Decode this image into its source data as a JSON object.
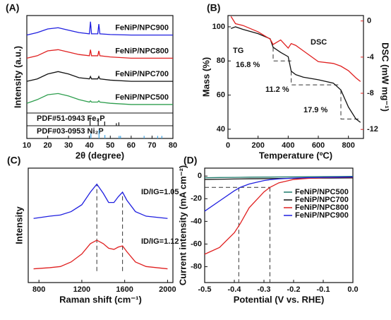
{
  "chart_data": [
    {
      "type": "line",
      "panel_label": "(A)",
      "x_label": "2θ (degree)",
      "y_label": "Intensity (a.u.)",
      "xlim": [
        10,
        80
      ],
      "xticks": [
        10,
        20,
        30,
        40,
        50,
        60,
        70,
        80
      ],
      "ylim": [
        0.6,
        4.6
      ],
      "x": [
        10,
        15,
        20,
        25,
        30,
        35,
        40,
        40.5,
        41,
        44,
        44.5,
        45,
        50,
        60,
        70,
        80
      ],
      "series": [
        {
          "name": "FeNiP/NPC900",
          "color": "#1f1fe0",
          "values": [
            3.8,
            3.9,
            4.05,
            4.1,
            4.0,
            3.9,
            3.85,
            4.35,
            3.85,
            3.85,
            4.25,
            3.85,
            3.82,
            3.8,
            3.8,
            3.8
          ]
        },
        {
          "name": "FeNiP/NPC800",
          "color": "#e02020",
          "values": [
            2.85,
            2.95,
            3.15,
            3.2,
            3.1,
            3.0,
            2.95,
            3.2,
            2.95,
            2.95,
            3.15,
            2.95,
            2.9,
            2.85,
            2.85,
            2.85
          ]
        },
        {
          "name": "FeNiP/NPC700",
          "color": "#111111",
          "values": [
            1.9,
            2.0,
            2.2,
            2.3,
            2.2,
            2.05,
            2.0,
            2.1,
            2.0,
            2.0,
            2.1,
            2.0,
            1.95,
            1.9,
            1.9,
            1.9
          ]
        },
        {
          "name": "FeNiP/NPC500",
          "color": "#2e9e4e",
          "values": [
            1.0,
            1.15,
            1.35,
            1.4,
            1.3,
            1.15,
            1.05,
            1.1,
            1.05,
            1.05,
            1.1,
            1.05,
            1.0,
            0.95,
            0.95,
            0.95
          ]
        }
      ],
      "references": [
        {
          "name": "PDF#51-0943  Fe₂P",
          "color": "#111111",
          "positions": [
            40.3,
            44.2,
            47.3,
            52.9,
            54.1
          ],
          "heights": [
            1,
            0.8,
            0.5,
            0.3,
            0.4
          ]
        },
        {
          "name": "PDF#03-0953  Ni₂P",
          "color": "#3aa0e0",
          "positions": [
            40.7,
            44.6,
            47.4,
            54.2,
            54.9,
            66.2,
            72.7,
            74.7
          ],
          "heights": [
            0.6,
            1,
            0.4,
            0.3,
            0.3,
            0.3,
            0.3,
            0.3
          ]
        }
      ]
    },
    {
      "type": "line",
      "panel_label": "(B)",
      "x_label": "Temperature (ºC)",
      "y_label": "Mass (%)",
      "y2_label": "DSC (mW mg⁻¹)",
      "y2_color": "#e02020",
      "xlim": [
        0,
        900
      ],
      "xticks": [
        0,
        200,
        400,
        600,
        800
      ],
      "ylim": [
        34.6,
        106.6
      ],
      "yticks": [
        40,
        60,
        80,
        100
      ],
      "y2lim": [
        -13,
        0.6
      ],
      "y2ticks": [
        0,
        -4,
        -8,
        -12
      ],
      "x": [
        20,
        50,
        100,
        200,
        280,
        300,
        350,
        400,
        420,
        450,
        500,
        600,
        700,
        750,
        800,
        850,
        880
      ],
      "series": [
        {
          "name": "TG",
          "color": "#111111",
          "values": [
            99,
            100,
            98.5,
            96,
            93,
            88,
            85,
            82.5,
            74,
            72,
            70.5,
            69,
            67,
            63,
            53,
            46,
            44
          ]
        },
        {
          "name": "DSC",
          "color": "#e02020",
          "axis": "y2",
          "values": [
            0.5,
            -0.3,
            -0.5,
            -1.2,
            -2.0,
            -2.6,
            -2.1,
            -3.0,
            -2.5,
            -2.7,
            -3.3,
            -4.5,
            -4.7,
            -5.0,
            -5.5,
            -6.3,
            -6.7
          ]
        }
      ],
      "guides": [
        {
          "x": [
            300,
            300,
            420
          ],
          "y": [
            88,
            80,
            80
          ]
        },
        {
          "x": [
            420,
            420,
            750
          ],
          "y": [
            74,
            66,
            66
          ]
        },
        {
          "x": [
            750,
            750,
            880
          ],
          "y": [
            63,
            46,
            46
          ]
        }
      ],
      "annotations": [
        "16.8 %",
        "11.2 %",
        "17.9 %"
      ]
    },
    {
      "type": "line",
      "panel_label": "(C)",
      "x_label": "Raman shift (cm⁻¹)",
      "y_label": "Intensity",
      "xlim": [
        700,
        2050
      ],
      "xticks": [
        800,
        1200,
        1600,
        2000
      ],
      "ylim": [
        0,
        10
      ],
      "x": [
        750,
        900,
        1000,
        1100,
        1200,
        1280,
        1340,
        1400,
        1450,
        1500,
        1540,
        1580,
        1620,
        1700,
        1800,
        1900,
        2000
      ],
      "series": [
        {
          "color": "#1f1fe0",
          "values": [
            5.6,
            5.8,
            5.9,
            6.2,
            6.8,
            7.9,
            8.6,
            7.8,
            7.0,
            7.0,
            7.5,
            7.9,
            7.2,
            6.2,
            5.8,
            5.7,
            5.6
          ]
        },
        {
          "color": "#e02020",
          "values": [
            1.2,
            1.3,
            1.4,
            1.8,
            2.5,
            3.4,
            3.7,
            3.4,
            3.0,
            2.9,
            3.1,
            3.2,
            2.7,
            1.8,
            1.4,
            1.3,
            1.2
          ]
        }
      ],
      "guides": [
        {
          "x": [
            1340,
            1340
          ],
          "y": [
            1,
            8.6
          ]
        },
        {
          "x": [
            1580,
            1580
          ],
          "y": [
            1,
            7.9
          ]
        }
      ],
      "annotations": [
        "ID/IG=1.05",
        "ID/IG=1.12"
      ]
    },
    {
      "type": "line",
      "panel_label": "(D)",
      "x_label": "Potential (V vs. RHE)",
      "y_label": "Current intensity (mA cm⁻²)",
      "xlim": [
        -0.5,
        0
      ],
      "xticks": [
        -0.5,
        -0.4,
        -0.3,
        -0.2,
        -0.1,
        {
          "value": 0,
          "label": "0.0"
        }
      ],
      "ylim": [
        -94,
        7
      ],
      "yticks": [
        0,
        -20,
        -40,
        -60,
        -80
      ],
      "x": [
        -0.5,
        -0.45,
        -0.4,
        -0.38,
        -0.35,
        -0.3,
        -0.28,
        -0.25,
        -0.2,
        -0.15,
        -0.1,
        -0.05,
        0
      ],
      "series": [
        {
          "name": "FeNiP/NPC500",
          "color": "#1e7a6a",
          "values": [
            -1.5,
            -1.3,
            -1.2,
            -1.1,
            -1.0,
            -0.9,
            -0.9,
            -0.8,
            -0.7,
            -0.6,
            -0.5,
            -0.4,
            -0.3
          ]
        },
        {
          "name": "FeNiP/NPC700",
          "color": "#111111",
          "values": [
            -3,
            -2.8,
            -2.6,
            -2.5,
            -2.4,
            -2.3,
            -2.2,
            -2.1,
            -2.0,
            -1.9,
            -1.8,
            -1.7,
            -1.6
          ]
        },
        {
          "name": "FeNiP/NPC800",
          "color": "#e02020",
          "values": [
            -69,
            -63,
            -50,
            -42,
            -28,
            -14,
            -10,
            -6,
            -3,
            -2,
            -1.5,
            -1.2,
            -1
          ]
        },
        {
          "name": "FeNiP/NPC900",
          "color": "#1f1fe0",
          "values": [
            -31,
            -22,
            -13,
            -10,
            -7,
            -4,
            -3.2,
            -2.5,
            -1.8,
            -1.4,
            -1.2,
            -1.0,
            -0.8
          ]
        }
      ],
      "guides": [
        {
          "x": [
            -0.5,
            -0.28
          ],
          "y": [
            -10,
            -10
          ]
        },
        {
          "x": [
            -0.385,
            -0.385
          ],
          "y": [
            -10,
            -94
          ]
        },
        {
          "x": [
            -0.28,
            -0.28
          ],
          "y": [
            -10,
            -94
          ]
        }
      ]
    }
  ]
}
